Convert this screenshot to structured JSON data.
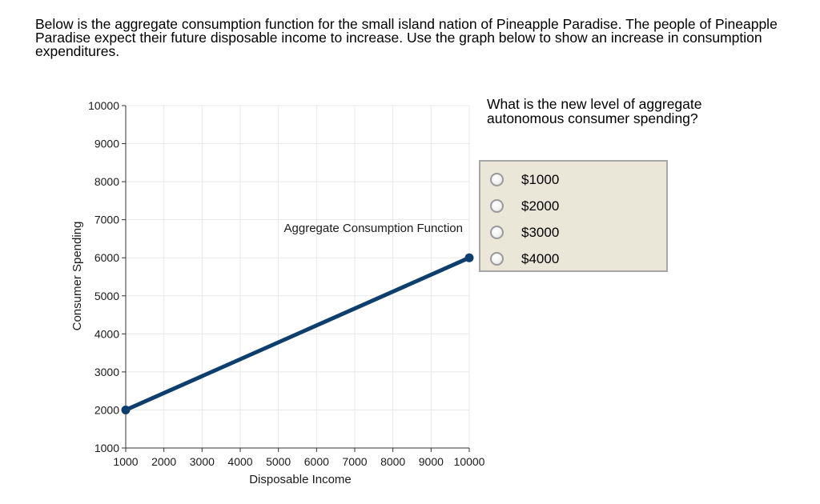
{
  "question": {
    "text": "Below is the aggregate consumption function for the small island nation of Pineapple Paradise. The people of Pineapple Paradise expect their future disposable income to increase. Use the graph below to show an increase in consumption expenditures."
  },
  "side_question": {
    "text": "What is the new level of aggregate autonomous consumer spending?"
  },
  "answer_options": [
    {
      "label": "$1000"
    },
    {
      "label": "$2000"
    },
    {
      "label": "$3000"
    },
    {
      "label": "$4000"
    }
  ],
  "colors": {
    "line": "#0d3f6e",
    "panel_bg": "#ebe7d8",
    "panel_border": "#a6a6a6",
    "grid": "#e8e8e8"
  },
  "chart_data": {
    "type": "line",
    "xlabel": "Disposable Income",
    "ylabel": "Consumer Spending",
    "xlim": [
      1000,
      10000
    ],
    "ylim": [
      1000,
      10000
    ],
    "x_ticks": [
      1000,
      2000,
      3000,
      4000,
      5000,
      6000,
      7000,
      8000,
      9000,
      10000
    ],
    "y_ticks": [
      1000,
      2000,
      3000,
      4000,
      5000,
      6000,
      7000,
      8000,
      9000,
      10000
    ],
    "grid": true,
    "series": [
      {
        "name": "Aggregate Consumption Function",
        "x": [
          1000,
          10000
        ],
        "y": [
          2000,
          6000
        ]
      }
    ]
  }
}
